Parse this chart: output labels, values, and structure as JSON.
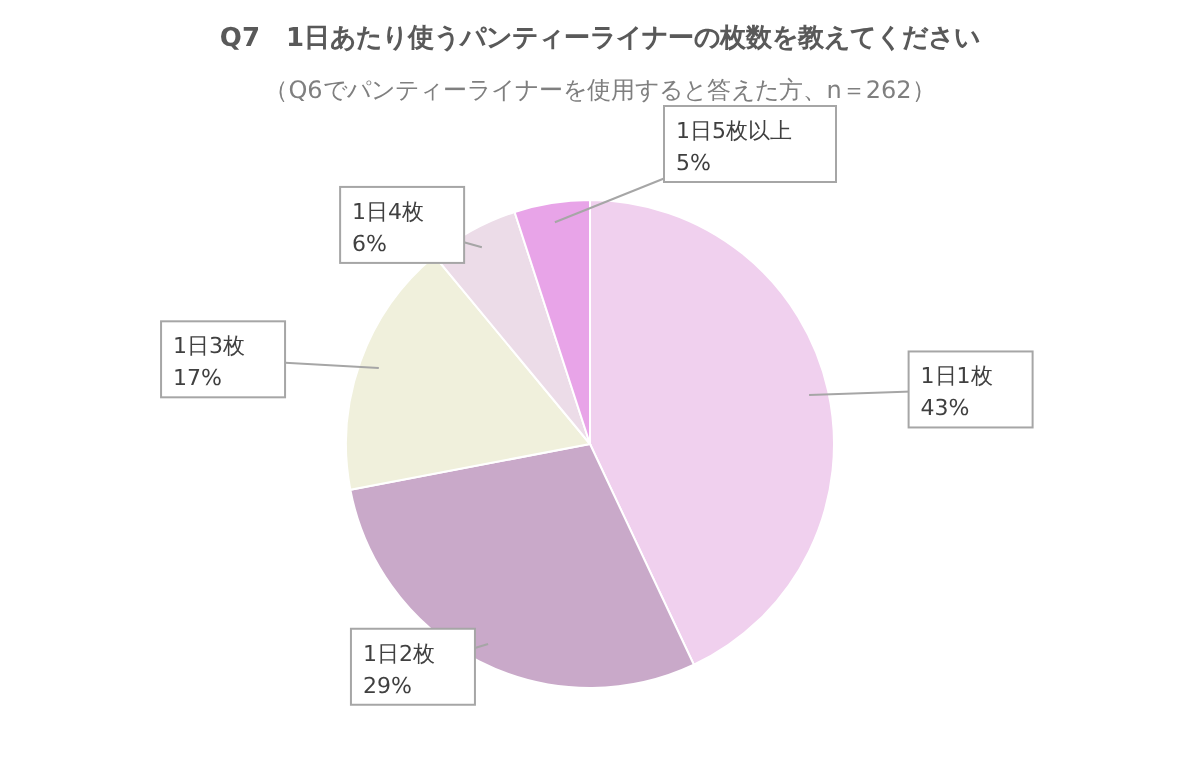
{
  "chart_data": {
    "type": "pie",
    "title": "Q7　1日あたり使うパンティーライナーの枚数を教えてください",
    "subtitle": "（Q6でパンティーライナーを使用すると答えた方、n＝262）",
    "categories": [
      "1日1枚",
      "1日2枚",
      "1日3枚",
      "1日4枚",
      "1日5枚以上"
    ],
    "values": [
      43,
      29,
      17,
      6,
      5
    ],
    "colors": [
      "#f0d0ee",
      "#c9a9c9",
      "#f0f0dc",
      "#ecdce8",
      "#e8a4e8"
    ],
    "value_labels": [
      "43%",
      "29%",
      "17%",
      "6%",
      "5%"
    ]
  }
}
